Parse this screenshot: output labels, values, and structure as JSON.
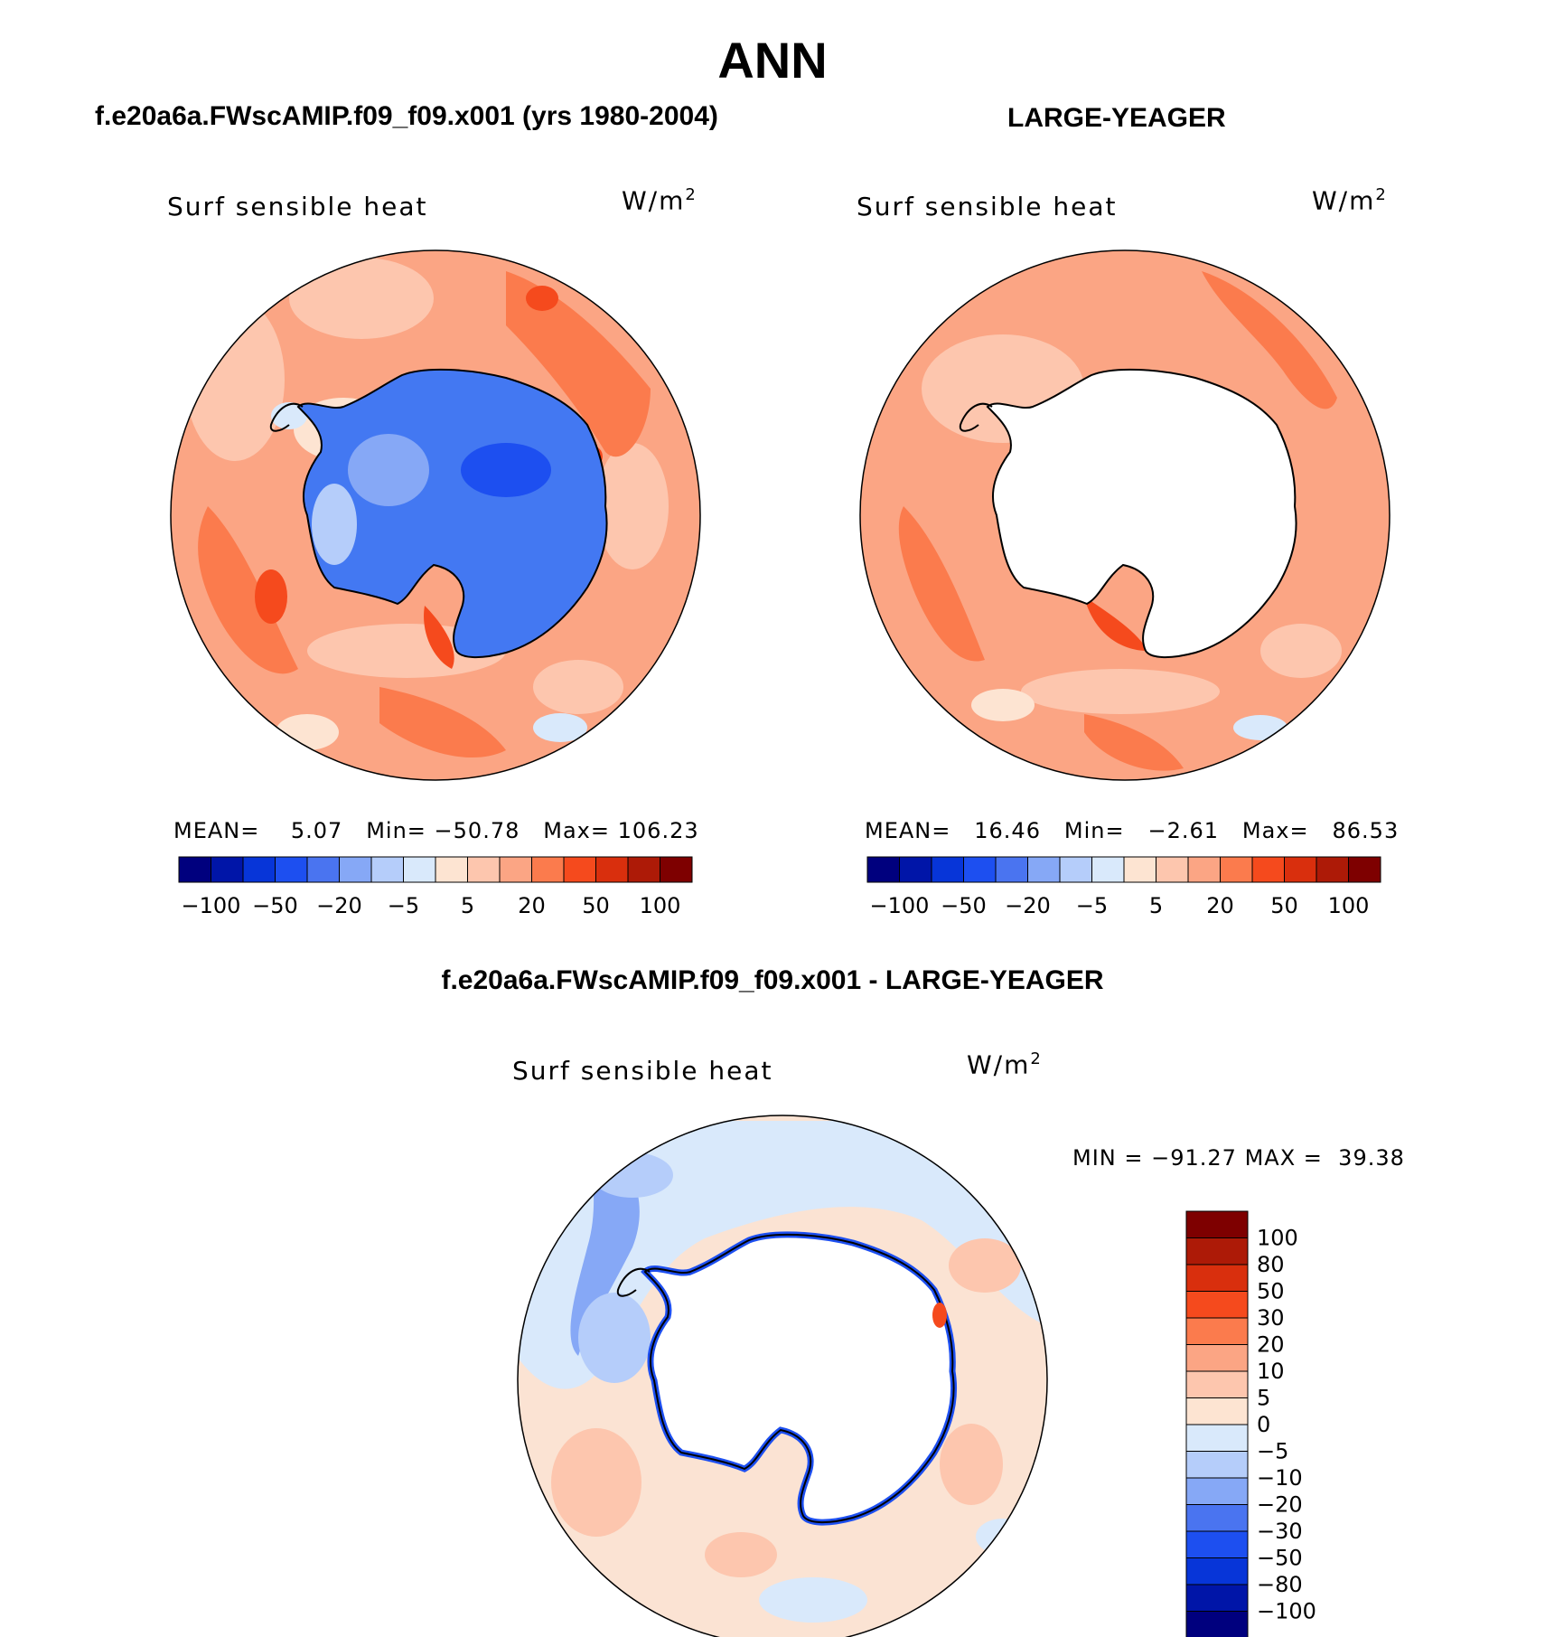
{
  "page_title": "ANN",
  "panels": [
    {
      "header": "f.e20a6a.FWscAMIP.f09_f09.x001 (yrs 1980-2004)",
      "var_label": "Surf sensible heat",
      "units": "W/m",
      "units_sup": "2",
      "stats": {
        "mean_label": "MEAN=",
        "mean": "5.07",
        "min_label": "Min=",
        "min": "−50.78",
        "max_label": "Max=",
        "max": "106.23"
      },
      "ice": "#4378f2",
      "ocean": "#fba584"
    },
    {
      "header": "LARGE-YEAGER",
      "var_label": "Surf sensible heat",
      "units": "W/m",
      "units_sup": "2",
      "stats": {
        "mean_label": "MEAN=",
        "mean": "16.46",
        "min_label": "Min=",
        "min": "−2.61",
        "max_label": "Max=",
        "max": "86.53"
      },
      "ice": "#ffffff",
      "ocean": "#fba584"
    },
    {
      "header": "f.e20a6a.FWscAMIP.f09_f09.x001 - LARGE-YEAGER",
      "var_label": "Surf sensible heat",
      "units": "W/m",
      "units_sup": "2",
      "stats": {
        "min_label": "MIN =",
        "min": "−91.27",
        "max_label": "MAX =",
        "max": "39.38"
      },
      "ice": "#ffffff",
      "ocean": "#fbe3d3"
    }
  ],
  "colorbar_top": {
    "colors": [
      "#00007e",
      "#0015a8",
      "#0735d8",
      "#1d4ff0",
      "#4a74f0",
      "#86a8f6",
      "#b5cdfa",
      "#d9e9fb",
      "#fde4d2",
      "#fdc6ae",
      "#fba584",
      "#fb7b4d",
      "#f54a1d",
      "#d92f0d",
      "#ad1a07",
      "#7e0000"
    ],
    "labels": [
      "−100",
      "−50",
      "−20",
      "−5",
      "5",
      "20",
      "50",
      "100"
    ]
  },
  "colorbar_diff": {
    "colors": [
      "#7e0000",
      "#ad1a07",
      "#d92f0d",
      "#f54a1d",
      "#fb7b4d",
      "#fba584",
      "#fdc6ae",
      "#fde4d2",
      "#d9e9fb",
      "#b5cdfa",
      "#86a8f6",
      "#4a74f0",
      "#1d4ff0",
      "#0735d8",
      "#0015a8",
      "#00007e"
    ],
    "labels": [
      "100",
      "80",
      "50",
      "30",
      "20",
      "10",
      "5",
      "0",
      "−5",
      "−10",
      "−20",
      "−30",
      "−50",
      "−80",
      "−100"
    ]
  }
}
